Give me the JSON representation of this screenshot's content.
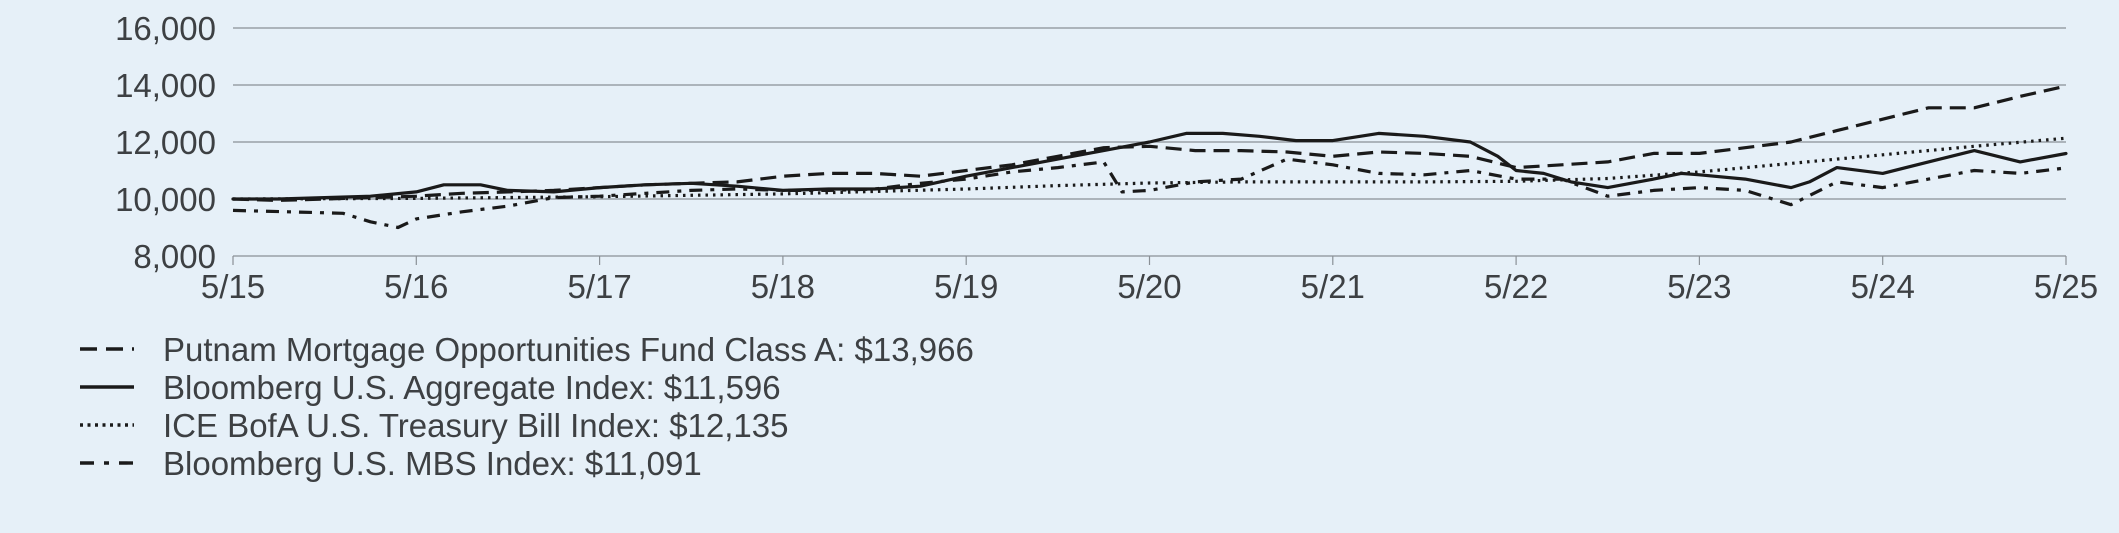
{
  "chart_data": {
    "type": "line",
    "title": "",
    "xlabel": "",
    "ylabel": "",
    "ylim": [
      8000,
      16000
    ],
    "yticks": [
      8000,
      10000,
      12000,
      14000,
      16000
    ],
    "ytick_labels": [
      "8,000",
      "10,000",
      "12,000",
      "14,000",
      "16,000"
    ],
    "xlim": [
      2015.0,
      2025.0
    ],
    "xticks": [
      2015,
      2016,
      2017,
      2018,
      2019,
      2020,
      2021,
      2022,
      2023,
      2024,
      2025
    ],
    "xtick_labels": [
      "5/15",
      "5/16",
      "5/17",
      "5/18",
      "5/19",
      "5/20",
      "5/21",
      "5/22",
      "5/23",
      "5/24",
      "5/25"
    ],
    "grid": "horizontal",
    "legend_position": "bottom",
    "series": [
      {
        "name": "Putnam Mortgage Opportunities Fund Class A",
        "legend_label": "Putnam Mortgage Opportunities Fund Class A: $13,966",
        "style": "long-dash",
        "color": "#1a1a1a",
        "x": [
          2015.0,
          2015.25,
          2015.5,
          2015.75,
          2016.0,
          2016.25,
          2016.5,
          2016.75,
          2017.0,
          2017.25,
          2017.5,
          2017.75,
          2018.0,
          2018.25,
          2018.5,
          2018.75,
          2019.0,
          2019.25,
          2019.5,
          2019.75,
          2020.0,
          2020.25,
          2020.5,
          2020.75,
          2021.0,
          2021.25,
          2021.5,
          2021.75,
          2022.0,
          2022.25,
          2022.5,
          2022.75,
          2023.0,
          2023.25,
          2023.5,
          2023.75,
          2024.0,
          2024.25,
          2024.5,
          2024.75,
          2025.0
        ],
        "values": [
          10000,
          9950,
          10000,
          10050,
          10100,
          10200,
          10250,
          10300,
          10400,
          10500,
          10550,
          10600,
          10800,
          10900,
          10900,
          10800,
          11000,
          11200,
          11500,
          11800,
          11850,
          11700,
          11700,
          11650,
          11500,
          11650,
          11600,
          11500,
          11100,
          11200,
          11300,
          11600,
          11600,
          11800,
          12000,
          12400,
          12800,
          13200,
          13200,
          13600,
          13966
        ]
      },
      {
        "name": "Bloomberg U.S. Aggregate Index",
        "legend_label": "Bloomberg U.S. Aggregate Index: $11,596",
        "style": "solid",
        "color": "#1a1a1a",
        "x": [
          2015.0,
          2015.25,
          2015.5,
          2015.75,
          2016.0,
          2016.15,
          2016.35,
          2016.5,
          2016.75,
          2017.0,
          2017.25,
          2017.5,
          2017.75,
          2018.0,
          2018.25,
          2018.5,
          2018.75,
          2019.0,
          2019.25,
          2019.5,
          2019.75,
          2020.0,
          2020.2,
          2020.4,
          2020.6,
          2020.8,
          2021.0,
          2021.25,
          2021.5,
          2021.75,
          2021.9,
          2022.0,
          2022.15,
          2022.3,
          2022.5,
          2022.75,
          2022.9,
          2023.0,
          2023.25,
          2023.5,
          2023.6,
          2023.75,
          2024.0,
          2024.25,
          2024.5,
          2024.75,
          2025.0
        ],
        "values": [
          10000,
          10000,
          10050,
          10100,
          10250,
          10500,
          10500,
          10300,
          10250,
          10400,
          10500,
          10550,
          10450,
          10300,
          10350,
          10350,
          10450,
          10800,
          11100,
          11400,
          11700,
          12000,
          12300,
          12300,
          12200,
          12050,
          12050,
          12300,
          12200,
          12000,
          11500,
          11000,
          10900,
          10600,
          10400,
          10700,
          10900,
          10850,
          10700,
          10400,
          10600,
          11100,
          10900,
          11300,
          11700,
          11300,
          11596
        ]
      },
      {
        "name": "ICE BofA U.S. Treasury Bill Index",
        "legend_label": "ICE BofA U.S. Treasury Bill Index: $12,135",
        "style": "dotted",
        "color": "#1a1a1a",
        "x": [
          2015.0,
          2016.0,
          2017.0,
          2018.0,
          2019.0,
          2019.5,
          2020.0,
          2020.5,
          2021.0,
          2021.5,
          2022.0,
          2022.5,
          2023.0,
          2023.5,
          2024.0,
          2024.5,
          2025.0
        ],
        "values": [
          10000,
          10020,
          10080,
          10180,
          10350,
          10470,
          10560,
          10600,
          10600,
          10600,
          10620,
          10720,
          10950,
          11250,
          11550,
          11850,
          12135
        ]
      },
      {
        "name": "Bloomberg U.S. MBS Index",
        "legend_label": "Bloomberg U.S. MBS Index: $11,091",
        "style": "dash-dot",
        "color": "#1a1a1a",
        "x": [
          2015.0,
          2015.3,
          2015.6,
          2015.75,
          2015.9,
          2016.0,
          2016.25,
          2016.5,
          2016.75,
          2017.0,
          2017.25,
          2017.5,
          2017.75,
          2018.0,
          2018.25,
          2018.5,
          2018.75,
          2019.0,
          2019.25,
          2019.5,
          2019.75,
          2019.85,
          2020.0,
          2020.25,
          2020.5,
          2020.75,
          2021.0,
          2021.25,
          2021.5,
          2021.75,
          2022.0,
          2022.25,
          2022.5,
          2022.75,
          2023.0,
          2023.25,
          2023.5,
          2023.75,
          2024.0,
          2024.25,
          2024.5,
          2024.75,
          2025.0
        ],
        "values": [
          9600,
          9550,
          9500,
          9200,
          9000,
          9300,
          9550,
          9750,
          10050,
          10100,
          10200,
          10300,
          10350,
          10300,
          10300,
          10350,
          10550,
          10700,
          10950,
          11100,
          11300,
          10250,
          10300,
          10600,
          10700,
          11400,
          11200,
          10900,
          10850,
          11000,
          10700,
          10700,
          10100,
          10300,
          10400,
          10300,
          9800,
          10600,
          10400,
          10700,
          11000,
          10900,
          11091
        ]
      }
    ]
  }
}
